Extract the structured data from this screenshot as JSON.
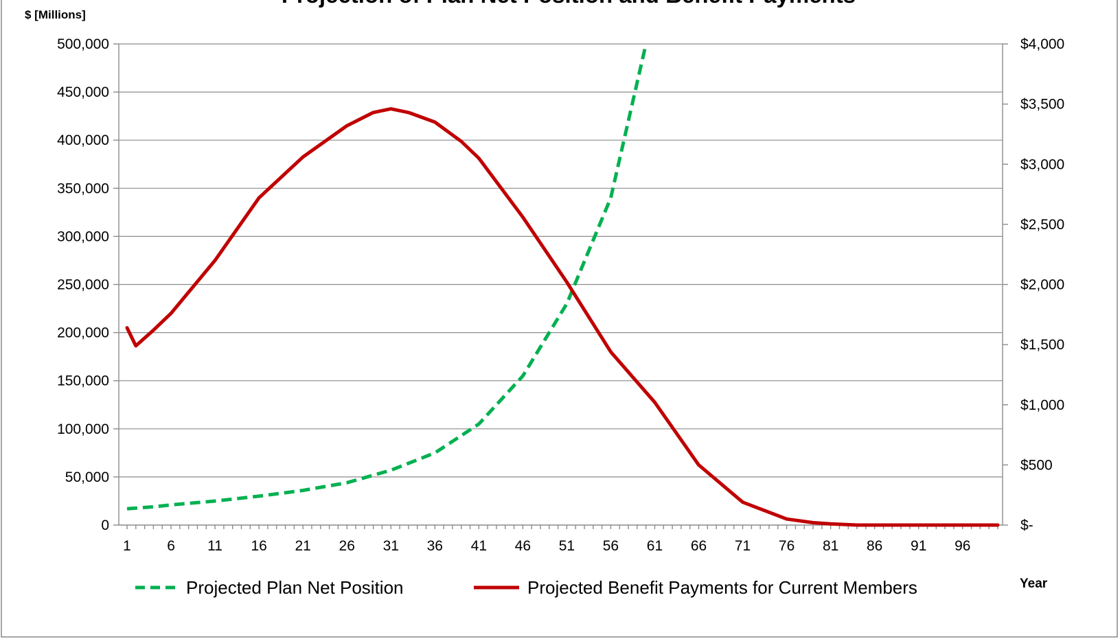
{
  "chart_data": {
    "type": "line",
    "title": "Projection of Plan Net Position and Benefit Payments",
    "y_left_unit": "$ [Millions]",
    "xlabel": "Year",
    "xlim": [
      1,
      100
    ],
    "x_tick_labels": [
      "1",
      "6",
      "11",
      "16",
      "21",
      "26",
      "31",
      "36",
      "41",
      "46",
      "51",
      "56",
      "61",
      "66",
      "71",
      "76",
      "81",
      "86",
      "91",
      "96"
    ],
    "y_left": {
      "ylim": [
        0,
        500000
      ],
      "tick_labels": [
        "0",
        "50,000",
        "100,000",
        "150,000",
        "200,000",
        "250,000",
        "300,000",
        "350,000",
        "400,000",
        "450,000",
        "500,000"
      ]
    },
    "y_right": {
      "ylim": [
        0,
        4000
      ],
      "tick_labels": [
        "$-",
        "$500",
        "$1,000",
        "$1,500",
        "$2,000",
        "$2,500",
        "$3,000",
        "$3,500",
        "$4,000"
      ]
    },
    "grid": true,
    "legend_position": "bottom",
    "series": [
      {
        "name": "Projected Plan Net Position",
        "axis": "left",
        "style": "dashed",
        "color": "#00b050",
        "points": [
          [
            1,
            17000
          ],
          [
            4,
            19000
          ],
          [
            6,
            21000
          ],
          [
            11,
            25000
          ],
          [
            16,
            30000
          ],
          [
            21,
            36000
          ],
          [
            26,
            44000
          ],
          [
            31,
            57000
          ],
          [
            36,
            75000
          ],
          [
            41,
            105000
          ],
          [
            46,
            155000
          ],
          [
            51,
            230000
          ],
          [
            56,
            340000
          ],
          [
            60,
            500000
          ]
        ]
      },
      {
        "name": "Projected Benefit Payments for Current Members",
        "axis": "right",
        "style": "solid",
        "color": "#c00000",
        "points": [
          [
            1,
            1640
          ],
          [
            2,
            1490
          ],
          [
            4,
            1620
          ],
          [
            6,
            1760
          ],
          [
            11,
            2200
          ],
          [
            16,
            2720
          ],
          [
            21,
            3060
          ],
          [
            26,
            3320
          ],
          [
            29,
            3430
          ],
          [
            31,
            3460
          ],
          [
            33,
            3430
          ],
          [
            36,
            3350
          ],
          [
            39,
            3190
          ],
          [
            41,
            3050
          ],
          [
            46,
            2560
          ],
          [
            51,
            2020
          ],
          [
            56,
            1440
          ],
          [
            61,
            1020
          ],
          [
            66,
            500
          ],
          [
            71,
            190
          ],
          [
            76,
            50
          ],
          [
            79,
            20
          ],
          [
            81,
            10
          ],
          [
            84,
            0
          ],
          [
            100,
            0
          ]
        ]
      }
    ]
  }
}
